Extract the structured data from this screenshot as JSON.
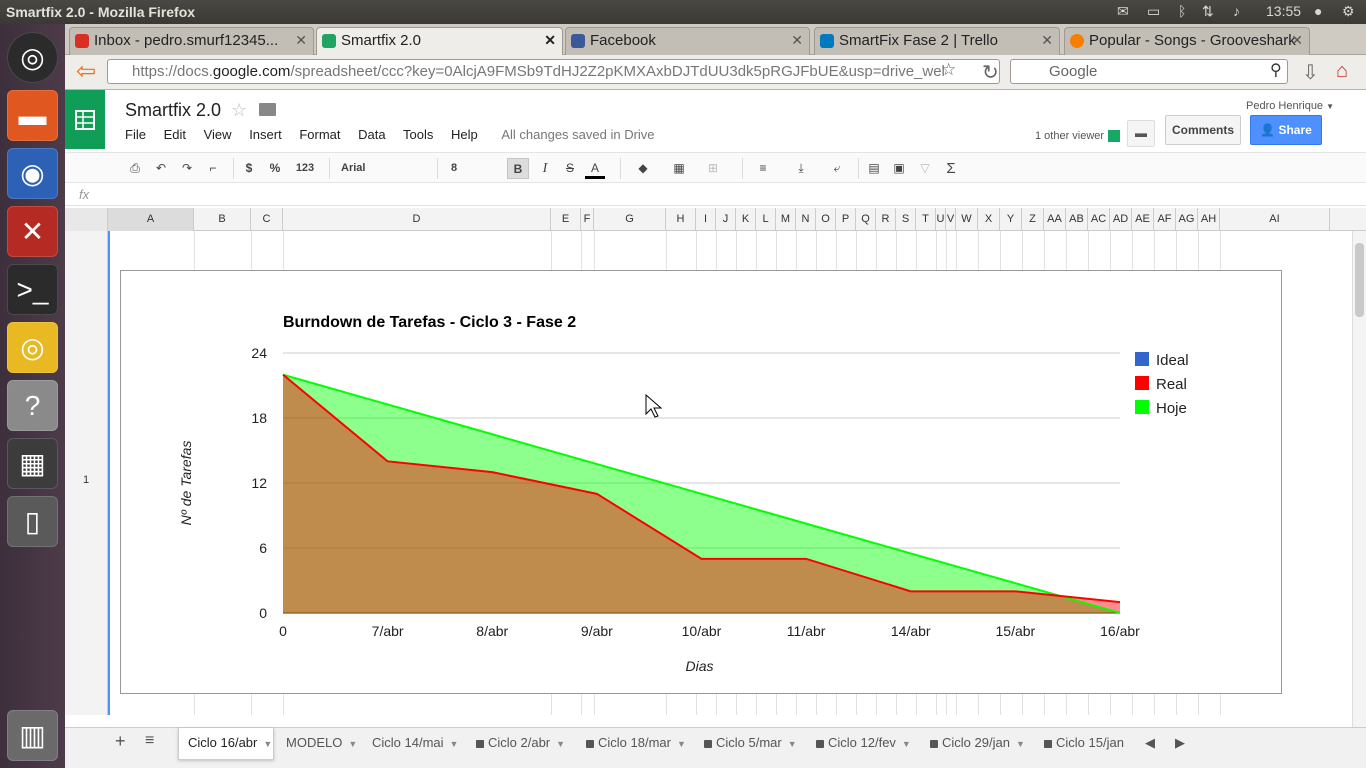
{
  "os": {
    "window_title": "Smartfix 2.0 - Mozilla Firefox",
    "clock": "13:55"
  },
  "browser": {
    "tabs": [
      {
        "label": "Inbox - pedro.smurf12345...",
        "color": "#d93025"
      },
      {
        "label": "Smartfix 2.0",
        "color": "#1fa463"
      },
      {
        "label": "Facebook",
        "color": "#3b5998"
      },
      {
        "label": "SmartFix Fase 2 | Trello",
        "color": "#0079bf"
      },
      {
        "label": "Popular - Songs - Grooveshark",
        "color": "#f77f00"
      }
    ],
    "url_prefix": "https://docs.",
    "url_domain": "google.com",
    "url_suffix": "/spreadsheet/ccc?key=0AlcjA9FMSb9TdHJ2Z2pKMXAxbDJTdUU3dk5pRGJFbUE&usp=drive_wel",
    "search_placeholder": "Google"
  },
  "sheets": {
    "doc_title": "Smartfix 2.0",
    "menu": [
      "File",
      "Edit",
      "View",
      "Insert",
      "Format",
      "Data",
      "Tools",
      "Help"
    ],
    "saved_status": "All changes saved in Drive",
    "user_name": "Pedro Henrique",
    "viewer_text": "1 other viewer",
    "comments_label": "Comments",
    "share_label": "Share",
    "toolbar": {
      "currency": "$",
      "percent": "%",
      "number_format": "123",
      "font_name": "Arial",
      "font_size": "8",
      "bold": "B",
      "italic": "I",
      "strike": "S",
      "text_color": "A",
      "functions": "Σ"
    },
    "formula_label": "fx",
    "columns": [
      "A",
      "B",
      "C",
      "D",
      "E",
      "F",
      "G",
      "H",
      "I",
      "J",
      "K",
      "L",
      "M",
      "N",
      "O",
      "P",
      "Q",
      "R",
      "S",
      "T",
      "U",
      "V",
      "W",
      "X",
      "Y",
      "Z",
      "AA",
      "AB",
      "AC",
      "AD",
      "AE",
      "AF",
      "AG",
      "AH",
      "AI"
    ],
    "row_number": "1",
    "sheet_tabs": [
      {
        "label": "Ciclo 16/abr",
        "locked": false
      },
      {
        "label": "MODELO",
        "locked": false
      },
      {
        "label": "Ciclo 14/mai",
        "locked": false
      },
      {
        "label": "Ciclo 2/abr",
        "locked": true
      },
      {
        "label": "Ciclo 18/mar",
        "locked": true
      },
      {
        "label": "Ciclo 5/mar",
        "locked": true
      },
      {
        "label": "Ciclo 12/fev",
        "locked": true
      },
      {
        "label": "Ciclo 29/jan",
        "locked": true
      },
      {
        "label": "Ciclo 15/jan",
        "locked": true
      }
    ]
  },
  "chart_data": {
    "type": "area",
    "title": "Burndown de Tarefas - Ciclo 3 - Fase 2",
    "xlabel": "Dias",
    "ylabel": "Nº de Tarefas",
    "categories": [
      "0",
      "7/abr",
      "8/abr",
      "9/abr",
      "10/abr",
      "11/abr",
      "14/abr",
      "15/abr",
      "16/abr"
    ],
    "ylim": [
      0,
      24
    ],
    "yticks": [
      0,
      6,
      12,
      18,
      24
    ],
    "grid": true,
    "legend_position": "right",
    "series": [
      {
        "name": "Ideal",
        "color": "#3366cc",
        "values": [
          22,
          19.25,
          16.5,
          13.75,
          11,
          8.25,
          5.5,
          2.75,
          0
        ]
      },
      {
        "name": "Real",
        "color": "#ff0000",
        "values": [
          22,
          14,
          13,
          11,
          5,
          5,
          2,
          2,
          1
        ]
      },
      {
        "name": "Hoje",
        "color": "#00ff00",
        "values": [
          22,
          19.25,
          16.5,
          13.75,
          11,
          8.25,
          5.5,
          2.75,
          0
        ]
      }
    ]
  }
}
